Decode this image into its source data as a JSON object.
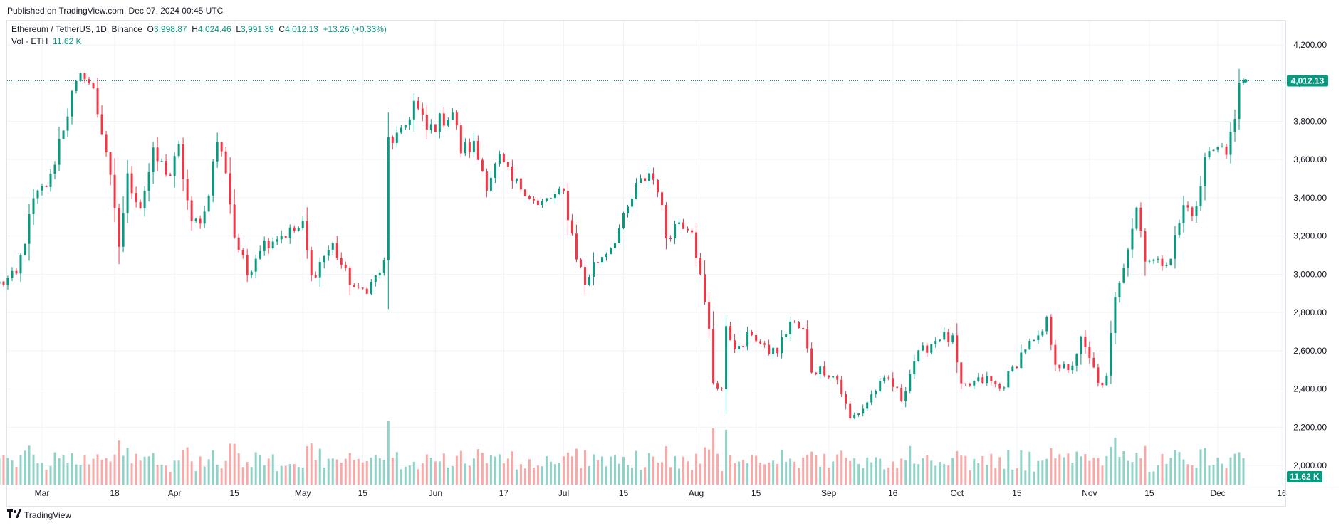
{
  "header": {
    "published": "Published on TradingView.com, Dec 07, 2024 00:45 UTC"
  },
  "legend": {
    "symbol": "Ethereum / TetherUS, 1D, Binance",
    "o_key": "O",
    "o_val": "3,998.87",
    "h_key": "H",
    "h_val": "4,024.46",
    "l_key": "L",
    "l_val": "3,991.39",
    "c_key": "C",
    "c_val": "4,012.13",
    "change": "+13.26 (+0.33%)",
    "vol_label": "Vol · ETH",
    "vol_val": "11.62 K"
  },
  "footer": {
    "brand": "TradingView"
  },
  "colors": {
    "up": "#089981",
    "down": "#f23645",
    "vol_up": "#8fd3c8",
    "vol_down": "#f7a9a7",
    "grid": "#f0f3fa"
  },
  "chart_data": {
    "type": "candlestick",
    "title": "Ethereum / TetherUS, 1D, Binance",
    "y_ticks": [
      "4,200.00",
      "4,000.00",
      "3,800.00",
      "3,600.00",
      "3,400.00",
      "3,200.00",
      "3,000.00",
      "2,800.00",
      "2,600.00",
      "2,400.00",
      "2,200.00",
      "2,000.00"
    ],
    "y_range": [
      1990,
      4250
    ],
    "x_ticks": [
      "Mar",
      "18",
      "Apr",
      "15",
      "May",
      "15",
      "Jun",
      "17",
      "Jul",
      "15",
      "Aug",
      "15",
      "Sep",
      "16",
      "Oct",
      "15",
      "Nov",
      "15",
      "Dec",
      "16"
    ],
    "x_tick_dates": [
      "2024-03-01",
      "2024-03-18",
      "2024-04-01",
      "2024-04-15",
      "2024-05-01",
      "2024-05-15",
      "2024-06-01",
      "2024-06-17",
      "2024-07-01",
      "2024-07-15",
      "2024-08-01",
      "2024-08-15",
      "2024-09-01",
      "2024-09-16",
      "2024-10-01",
      "2024-10-15",
      "2024-11-01",
      "2024-11-15",
      "2024-12-01",
      "2024-12-16"
    ],
    "last_price_label": "4,012.13",
    "last_volume_label": "11.62 K",
    "anchors": [
      [
        "2024-02-20",
        2950
      ],
      [
        "2024-02-24",
        2990
      ],
      [
        "2024-02-28",
        3380
      ],
      [
        "2024-03-03",
        3500
      ],
      [
        "2024-03-05",
        3700
      ],
      [
        "2024-03-08",
        3930
      ],
      [
        "2024-03-11",
        4060
      ],
      [
        "2024-03-13",
        3950
      ],
      [
        "2024-03-16",
        3650
      ],
      [
        "2024-03-19",
        3150
      ],
      [
        "2024-03-21",
        3500
      ],
      [
        "2024-03-24",
        3360
      ],
      [
        "2024-03-27",
        3620
      ],
      [
        "2024-03-31",
        3520
      ],
      [
        "2024-04-02",
        3650
      ],
      [
        "2024-04-05",
        3250
      ],
      [
        "2024-04-08",
        3320
      ],
      [
        "2024-04-11",
        3700
      ],
      [
        "2024-04-13",
        3550
      ],
      [
        "2024-04-15",
        3200
      ],
      [
        "2024-04-18",
        3000
      ],
      [
        "2024-04-21",
        3150
      ],
      [
        "2024-04-25",
        3200
      ],
      [
        "2024-04-28",
        3220
      ],
      [
        "2024-05-01",
        3250
      ],
      [
        "2024-05-03",
        2980
      ],
      [
        "2024-05-06",
        3100
      ],
      [
        "2024-05-08",
        3150
      ],
      [
        "2024-05-11",
        3000
      ],
      [
        "2024-05-14",
        2900
      ],
      [
        "2024-05-17",
        2950
      ],
      [
        "2024-05-20",
        3050
      ],
      [
        "2024-05-21",
        3700
      ],
      [
        "2024-05-24",
        3720
      ],
      [
        "2024-05-27",
        3900
      ],
      [
        "2024-05-30",
        3750
      ],
      [
        "2024-06-02",
        3800
      ],
      [
        "2024-06-05",
        3850
      ],
      [
        "2024-06-07",
        3650
      ],
      [
        "2024-06-10",
        3670
      ],
      [
        "2024-06-13",
        3480
      ],
      [
        "2024-06-16",
        3600
      ],
      [
        "2024-06-19",
        3480
      ],
      [
        "2024-06-22",
        3450
      ],
      [
        "2024-06-25",
        3350
      ],
      [
        "2024-06-28",
        3400
      ],
      [
        "2024-07-01",
        3420
      ],
      [
        "2024-07-04",
        3100
      ],
      [
        "2024-07-06",
        2950
      ],
      [
        "2024-07-08",
        3050
      ],
      [
        "2024-07-12",
        3150
      ],
      [
        "2024-07-15",
        3280
      ],
      [
        "2024-07-18",
        3450
      ],
      [
        "2024-07-21",
        3530
      ],
      [
        "2024-07-23",
        3460
      ],
      [
        "2024-07-25",
        3200
      ],
      [
        "2024-07-28",
        3280
      ],
      [
        "2024-07-31",
        3250
      ],
      [
        "2024-08-02",
        2980
      ],
      [
        "2024-08-04",
        2700
      ],
      [
        "2024-08-05",
        2440
      ],
      [
        "2024-08-07",
        2400
      ],
      [
        "2024-08-08",
        2700
      ],
      [
        "2024-08-11",
        2600
      ],
      [
        "2024-08-14",
        2700
      ],
      [
        "2024-08-17",
        2600
      ],
      [
        "2024-08-20",
        2600
      ],
      [
        "2024-08-23",
        2750
      ],
      [
        "2024-08-26",
        2700
      ],
      [
        "2024-08-28",
        2500
      ],
      [
        "2024-08-31",
        2500
      ],
      [
        "2024-09-03",
        2450
      ],
      [
        "2024-09-06",
        2240
      ],
      [
        "2024-09-09",
        2300
      ],
      [
        "2024-09-12",
        2400
      ],
      [
        "2024-09-15",
        2450
      ],
      [
        "2024-09-18",
        2350
      ],
      [
        "2024-09-21",
        2550
      ],
      [
        "2024-09-24",
        2620
      ],
      [
        "2024-09-27",
        2680
      ],
      [
        "2024-09-30",
        2650
      ],
      [
        "2024-10-02",
        2400
      ],
      [
        "2024-10-05",
        2430
      ],
      [
        "2024-10-08",
        2450
      ],
      [
        "2024-10-11",
        2400
      ],
      [
        "2024-10-14",
        2500
      ],
      [
        "2024-10-17",
        2620
      ],
      [
        "2024-10-20",
        2650
      ],
      [
        "2024-10-22",
        2750
      ],
      [
        "2024-10-24",
        2550
      ],
      [
        "2024-10-27",
        2480
      ],
      [
        "2024-10-30",
        2650
      ],
      [
        "2024-11-02",
        2500
      ],
      [
        "2024-11-04",
        2400
      ],
      [
        "2024-11-05",
        2450
      ],
      [
        "2024-11-07",
        2900
      ],
      [
        "2024-11-10",
        3150
      ],
      [
        "2024-11-12",
        3350
      ],
      [
        "2024-11-14",
        3100
      ],
      [
        "2024-11-17",
        3050
      ],
      [
        "2024-11-20",
        3100
      ],
      [
        "2024-11-23",
        3350
      ],
      [
        "2024-11-26",
        3330
      ],
      [
        "2024-11-28",
        3600
      ],
      [
        "2024-12-01",
        3700
      ],
      [
        "2024-12-03",
        3620
      ],
      [
        "2024-12-05",
        3820
      ],
      [
        "2024-12-06",
        3999
      ]
    ],
    "last_candle": {
      "date": "2024-12-07",
      "open": 3998.87,
      "high": 4024.46,
      "low": 3991.39,
      "close": 4012.13
    }
  }
}
